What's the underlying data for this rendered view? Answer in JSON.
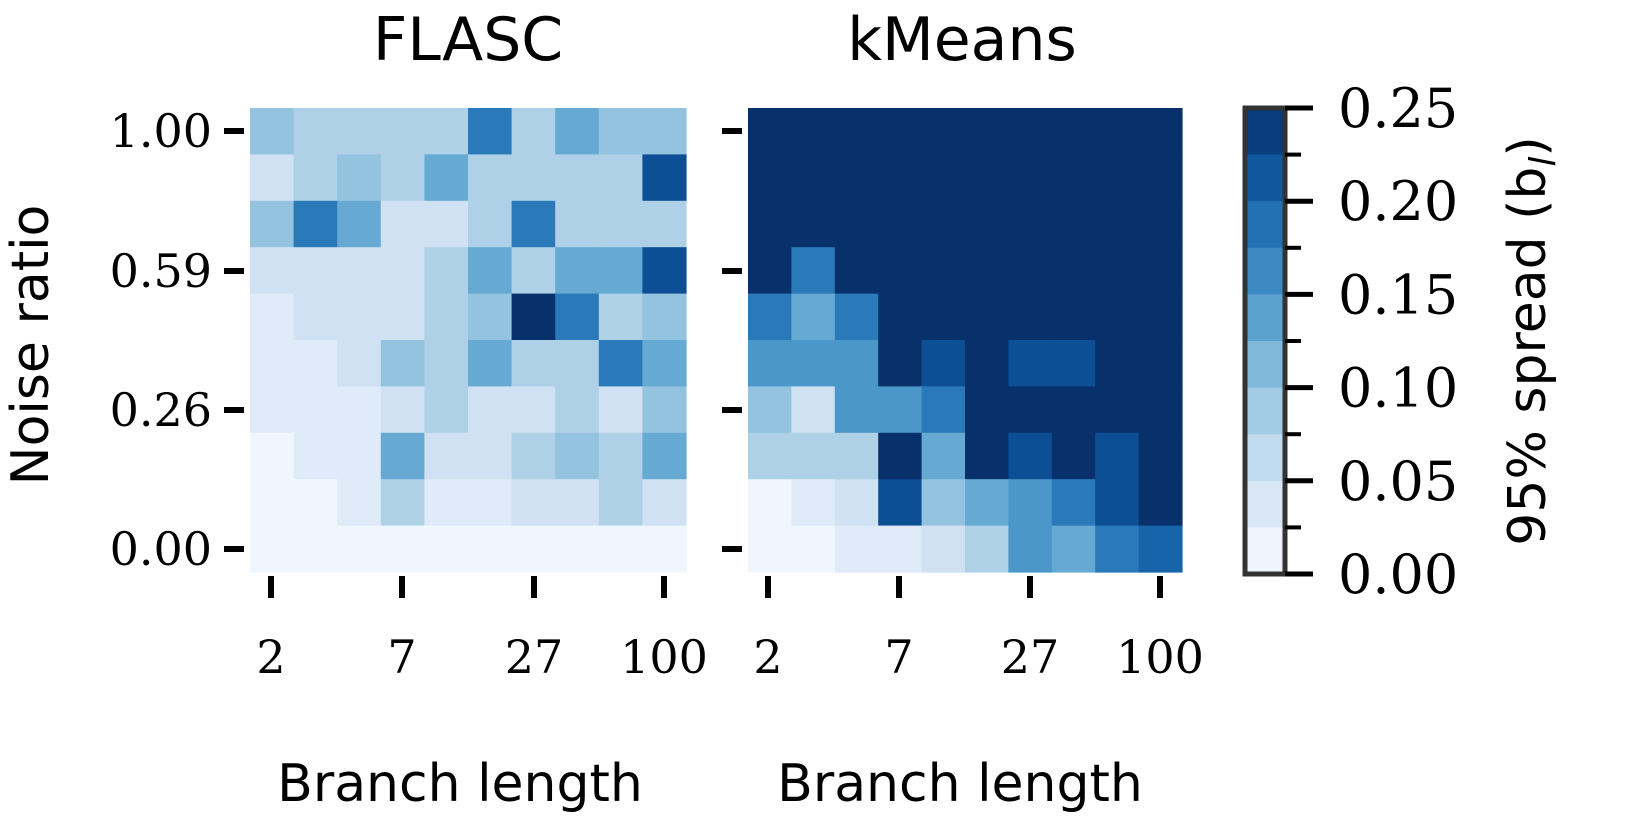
{
  "chart_data": [
    {
      "type": "heatmap",
      "title": "FLASC",
      "xlabel": "Branch length",
      "ylabel": "Noise ratio",
      "xticks": [
        "2",
        "7",
        "27",
        "100"
      ],
      "yticks": [
        "1.00",
        "0.59",
        "0.26",
        "0.00"
      ],
      "n_rows": 10,
      "n_cols": 10,
      "rows_top_to_bottom": [
        [
          0.1,
          0.08,
          0.08,
          0.08,
          0.08,
          0.18,
          0.08,
          0.13,
          0.1,
          0.1
        ],
        [
          0.05,
          0.08,
          0.1,
          0.08,
          0.13,
          0.08,
          0.08,
          0.08,
          0.08,
          0.22
        ],
        [
          0.1,
          0.18,
          0.13,
          0.05,
          0.05,
          0.08,
          0.18,
          0.08,
          0.08,
          0.08
        ],
        [
          0.05,
          0.05,
          0.05,
          0.05,
          0.08,
          0.13,
          0.08,
          0.13,
          0.13,
          0.22
        ],
        [
          0.03,
          0.05,
          0.05,
          0.05,
          0.08,
          0.1,
          0.25,
          0.18,
          0.08,
          0.1
        ],
        [
          0.03,
          0.03,
          0.05,
          0.1,
          0.08,
          0.13,
          0.08,
          0.08,
          0.18,
          0.13
        ],
        [
          0.03,
          0.03,
          0.03,
          0.05,
          0.08,
          0.05,
          0.05,
          0.08,
          0.05,
          0.1
        ],
        [
          0.01,
          0.03,
          0.03,
          0.13,
          0.05,
          0.05,
          0.08,
          0.1,
          0.08,
          0.13
        ],
        [
          0.01,
          0.01,
          0.03,
          0.08,
          0.03,
          0.03,
          0.05,
          0.05,
          0.08,
          0.05
        ],
        [
          0.01,
          0.01,
          0.01,
          0.01,
          0.01,
          0.01,
          0.01,
          0.01,
          0.01,
          0.01
        ]
      ]
    },
    {
      "type": "heatmap",
      "title": "kMeans",
      "xlabel": "Branch length",
      "ylabel": "",
      "xticks": [
        "2",
        "7",
        "27",
        "100"
      ],
      "yticks": [
        "",
        "",
        "",
        ""
      ],
      "n_rows": 10,
      "n_cols": 10,
      "rows_top_to_bottom": [
        [
          0.25,
          0.25,
          0.25,
          0.25,
          0.25,
          0.25,
          0.25,
          0.25,
          0.25,
          0.25
        ],
        [
          0.25,
          0.25,
          0.25,
          0.25,
          0.25,
          0.25,
          0.25,
          0.25,
          0.25,
          0.25
        ],
        [
          0.25,
          0.25,
          0.25,
          0.25,
          0.25,
          0.25,
          0.25,
          0.25,
          0.25,
          0.25
        ],
        [
          0.25,
          0.18,
          0.25,
          0.25,
          0.25,
          0.25,
          0.25,
          0.25,
          0.25,
          0.25
        ],
        [
          0.18,
          0.13,
          0.18,
          0.25,
          0.25,
          0.25,
          0.25,
          0.25,
          0.25,
          0.25
        ],
        [
          0.15,
          0.15,
          0.15,
          0.25,
          0.22,
          0.25,
          0.22,
          0.22,
          0.25,
          0.25
        ],
        [
          0.1,
          0.05,
          0.15,
          0.15,
          0.18,
          0.25,
          0.25,
          0.25,
          0.25,
          0.25
        ],
        [
          0.08,
          0.08,
          0.08,
          0.25,
          0.13,
          0.25,
          0.22,
          0.25,
          0.22,
          0.25
        ],
        [
          0.01,
          0.03,
          0.05,
          0.22,
          0.1,
          0.13,
          0.15,
          0.18,
          0.22,
          0.25
        ],
        [
          0.01,
          0.01,
          0.03,
          0.03,
          0.05,
          0.08,
          0.15,
          0.13,
          0.18,
          0.2
        ]
      ]
    }
  ],
  "colorbar": {
    "label": "95% spread (b",
    "label_sub": "l",
    "label_close": ")",
    "vmin": 0.0,
    "vmax": 0.25,
    "ticks": [
      "0.00",
      "0.05",
      "0.10",
      "0.15",
      "0.20",
      "0.25"
    ],
    "colors": [
      "#f7fbff",
      "#e3eef9",
      "#cfe1f2",
      "#b5d4e9",
      "#93c3df",
      "#6daed5",
      "#4b97c9",
      "#2f7ebc",
      "#1864aa",
      "#0a4a90",
      "#08306b"
    ]
  }
}
